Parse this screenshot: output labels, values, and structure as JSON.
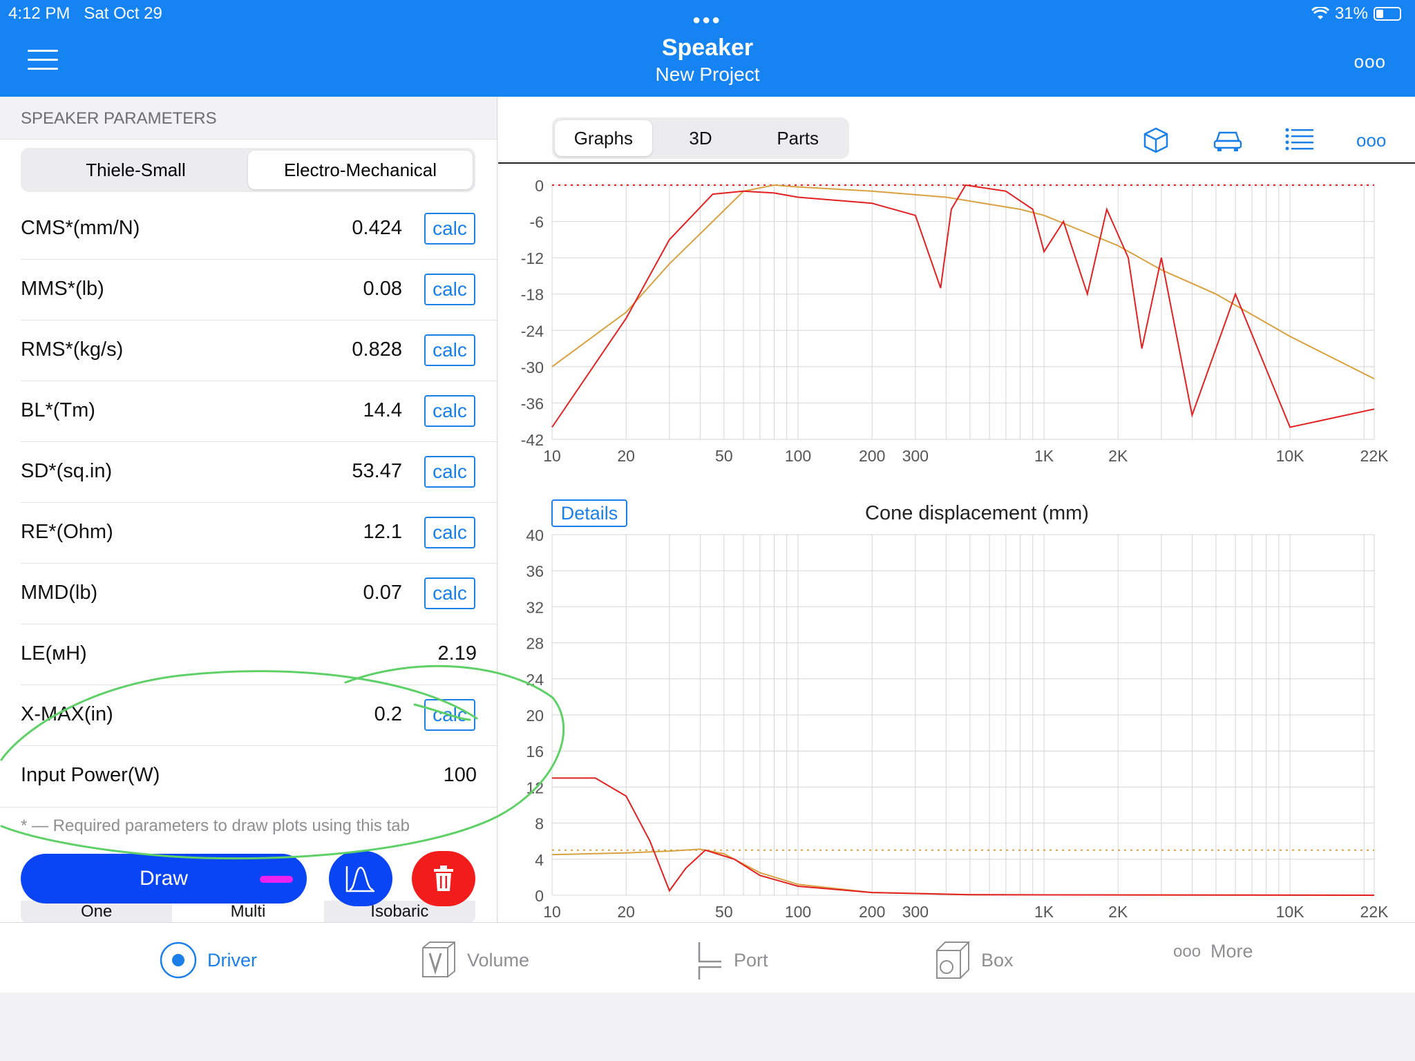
{
  "status": {
    "time": "4:12 PM",
    "date": "Sat Oct 29",
    "battery": "31%"
  },
  "header": {
    "title": "Speaker",
    "subtitle": "New Project",
    "menu_icon": "hamburger-icon",
    "more_icon": "ellipsis-icon"
  },
  "left": {
    "section_title": "SPEAKER PARAMETERS",
    "tabs": [
      "Thiele-Small",
      "Electro-Mechanical"
    ],
    "active_tab": "Electro-Mechanical",
    "calc_label": "calc",
    "params": [
      {
        "label": "CMS*(mm/N)",
        "value": "0.424",
        "calc": true
      },
      {
        "label": "MMS*(lb)",
        "value": "0.08",
        "calc": true
      },
      {
        "label": "RMS*(kg/s)",
        "value": "0.828",
        "calc": true
      },
      {
        "label": "BL*(Tm)",
        "value": "14.4",
        "calc": true
      },
      {
        "label": "SD*(sq.in)",
        "value": "53.47",
        "calc": true
      },
      {
        "label": "RE*(Ohm)",
        "value": "12.1",
        "calc": true
      },
      {
        "label": "MMD(lb)",
        "value": "0.07",
        "calc": true
      },
      {
        "label": "LE(мH)",
        "value": "2.19",
        "calc": false
      },
      {
        "label": "X-MAX(in)",
        "value": "0.2",
        "calc": true
      },
      {
        "label": "Input Power(W)",
        "value": "100",
        "calc": false
      }
    ],
    "note": "* — Required parameters to draw plots using this tab",
    "draw_label": "Draw",
    "modes": [
      "One",
      "Multi",
      "Isobaric"
    ],
    "active_mode": "Multi"
  },
  "right": {
    "tabs": [
      "Graphs",
      "3D",
      "Parts"
    ],
    "active_tab": "Graphs",
    "toolbar_icons": [
      "box-icon",
      "car-icon",
      "list-icon",
      "ellipsis-icon"
    ],
    "details_label": "Details"
  },
  "chart_data": [
    {
      "type": "line",
      "title": "",
      "x_scale": "log",
      "x_ticks": [
        "10",
        "20",
        "50",
        "100",
        "200",
        "300",
        "1K",
        "2K",
        "10K",
        "22K"
      ],
      "y_ticks": [
        "0",
        "-6",
        "-12",
        "-18",
        "-24",
        "-30",
        "-36",
        "-42"
      ],
      "xlim": [
        10,
        22000
      ],
      "ylim": [
        -42,
        0
      ],
      "reference_line": 0,
      "series": [
        {
          "color": "#d9a040",
          "points": [
            [
              10,
              -30
            ],
            [
              20,
              -21
            ],
            [
              30,
              -13
            ],
            [
              45,
              -6
            ],
            [
              60,
              -1
            ],
            [
              80,
              0
            ],
            [
              100,
              -0.3
            ],
            [
              200,
              -1
            ],
            [
              400,
              -2
            ],
            [
              800,
              -4
            ],
            [
              1000,
              -5
            ],
            [
              2000,
              -10
            ],
            [
              3000,
              -14
            ],
            [
              5000,
              -18
            ],
            [
              10000,
              -25
            ],
            [
              22000,
              -32
            ]
          ]
        },
        {
          "color": "#e32020",
          "points": [
            [
              10,
              -40
            ],
            [
              20,
              -22
            ],
            [
              30,
              -9
            ],
            [
              45,
              -1.5
            ],
            [
              60,
              -1
            ],
            [
              80,
              -1.3
            ],
            [
              100,
              -2
            ],
            [
              200,
              -3
            ],
            [
              300,
              -5
            ],
            [
              380,
              -17
            ],
            [
              420,
              -4
            ],
            [
              480,
              0
            ],
            [
              700,
              -1
            ],
            [
              900,
              -4
            ],
            [
              1000,
              -11
            ],
            [
              1200,
              -6
            ],
            [
              1500,
              -18
            ],
            [
              1800,
              -4
            ],
            [
              2200,
              -12
            ],
            [
              2500,
              -27
            ],
            [
              3000,
              -12
            ],
            [
              4000,
              -38
            ],
            [
              6000,
              -18
            ],
            [
              10000,
              -40
            ],
            [
              22000,
              -37
            ]
          ]
        }
      ]
    },
    {
      "type": "line",
      "title": "Cone displacement (mm)",
      "x_scale": "log",
      "x_ticks": [
        "10",
        "20",
        "50",
        "100",
        "200",
        "300",
        "1K",
        "2K",
        "10K",
        "22K"
      ],
      "y_ticks": [
        "0",
        "4",
        "8",
        "12",
        "16",
        "20",
        "24",
        "28",
        "32",
        "36",
        "40"
      ],
      "xlim": [
        10,
        22000
      ],
      "ylim": [
        0,
        40
      ],
      "reference_line": 5,
      "series": [
        {
          "color": "#d9a040",
          "points": [
            [
              10,
              4.5
            ],
            [
              20,
              4.7
            ],
            [
              30,
              4.9
            ],
            [
              40,
              5.1
            ],
            [
              50,
              4.6
            ],
            [
              70,
              2.5
            ],
            [
              100,
              1.2
            ],
            [
              200,
              0.3
            ],
            [
              500,
              0.05
            ],
            [
              22000,
              0
            ]
          ]
        },
        {
          "color": "#e32020",
          "points": [
            [
              10,
              13
            ],
            [
              15,
              13
            ],
            [
              20,
              11
            ],
            [
              25,
              6
            ],
            [
              30,
              0.5
            ],
            [
              35,
              3
            ],
            [
              42,
              5
            ],
            [
              55,
              4
            ],
            [
              70,
              2.2
            ],
            [
              100,
              1.0
            ],
            [
              200,
              0.3
            ],
            [
              500,
              0.05
            ],
            [
              22000,
              0
            ]
          ]
        }
      ]
    }
  ],
  "tabbar": {
    "items": [
      {
        "label": "Driver",
        "icon": "driver-icon",
        "active": true
      },
      {
        "label": "Volume",
        "icon": "volume-icon",
        "active": false
      },
      {
        "label": "Port",
        "icon": "port-icon",
        "active": false
      },
      {
        "label": "Box",
        "icon": "box-icon",
        "active": false
      },
      {
        "label": "More",
        "icon": "ellipsis-icon",
        "active": false
      }
    ]
  },
  "annotation": {
    "color": "#5fd067",
    "type": "hand-drawn-circle"
  }
}
